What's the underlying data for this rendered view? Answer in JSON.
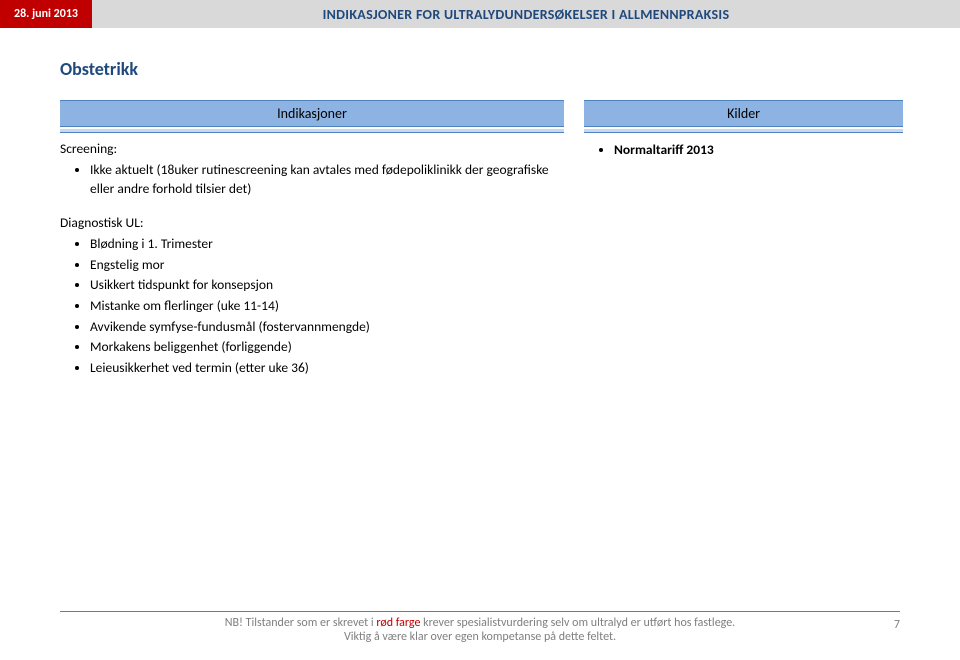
{
  "header": {
    "date": "28. juni 2013",
    "title": "INDIKASJONER FOR ULTRALYDUNDERSØKELSER I ALLMENNPRAKSIS"
  },
  "section_title": "Obstetrikk",
  "columns": {
    "left_header": "Indikasjoner",
    "right_header": "Kilder"
  },
  "screening": {
    "heading": "Screening:",
    "items": [
      "Ikke aktuelt (18uker rutinescreening kan avtales med fødepoliklinikk der geografiske eller andre forhold tilsier det)"
    ]
  },
  "diagnostic": {
    "heading": "Diagnostisk UL:",
    "items": [
      "Blødning i 1. Trimester",
      "Engstelig mor",
      "Usikkert tidspunkt for konsepsjon",
      "Mistanke om flerlinger (uke 11-14)",
      "Avvikende symfyse-fundusmål (fostervannmengde)",
      "Morkakens beliggenhet (forliggende)",
      "Leieusikkerhet ved termin (etter uke 36)"
    ]
  },
  "kilder": {
    "items": [
      "Normaltariff 2013"
    ]
  },
  "footer": {
    "line1_pre": "NB! Tilstander som er skrevet i ",
    "line1_red": "rød farge",
    "line1_post": " krever spesialistvurdering selv om ultralyd er utført hos fastlege.",
    "line2": "Viktig å være klar over egen kompetanse på dette feltet.",
    "page": "7"
  }
}
